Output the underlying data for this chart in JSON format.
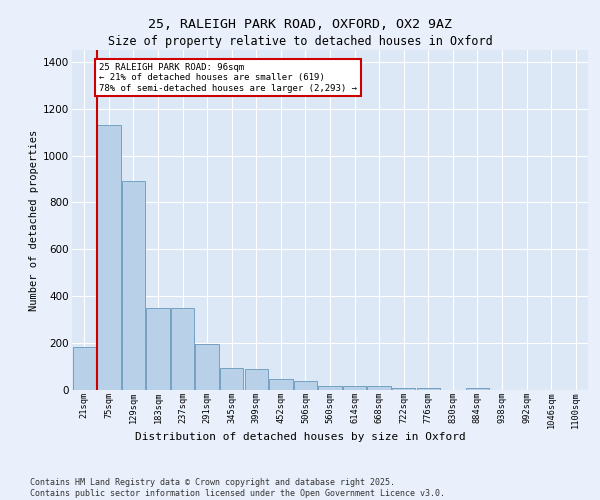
{
  "title_line1": "25, RALEIGH PARK ROAD, OXFORD, OX2 9AZ",
  "title_line2": "Size of property relative to detached houses in Oxford",
  "xlabel": "Distribution of detached houses by size in Oxford",
  "ylabel": "Number of detached properties",
  "bar_values": [
    185,
    1130,
    890,
    350,
    350,
    195,
    95,
    90,
    45,
    40,
    15,
    15,
    15,
    10,
    10,
    0,
    10,
    0,
    0,
    0,
    0
  ],
  "bar_labels": [
    "21sqm",
    "75sqm",
    "129sqm",
    "183sqm",
    "237sqm",
    "291sqm",
    "345sqm",
    "399sqm",
    "452sqm",
    "506sqm",
    "560sqm",
    "614sqm",
    "668sqm",
    "722sqm",
    "776sqm",
    "830sqm",
    "884sqm",
    "938sqm",
    "992sqm",
    "1046sqm",
    "1100sqm"
  ],
  "bar_color": "#b8d0e8",
  "bar_edgecolor": "#6699bb",
  "bg_color": "#eaf0fb",
  "plot_bg_color": "#dce8f5",
  "grid_color": "#ffffff",
  "vline_x_index": 1,
  "vline_color": "#cc0000",
  "annotation_line1": "25 RALEIGH PARK ROAD: 96sqm",
  "annotation_line2": "← 21% of detached houses are smaller (619)",
  "annotation_line3": "78% of semi-detached houses are larger (2,293) →",
  "annotation_box_edgecolor": "#cc0000",
  "footer_text": "Contains HM Land Registry data © Crown copyright and database right 2025.\nContains public sector information licensed under the Open Government Licence v3.0.",
  "ylim_max": 1450,
  "yticks": [
    0,
    200,
    400,
    600,
    800,
    1000,
    1200,
    1400
  ]
}
